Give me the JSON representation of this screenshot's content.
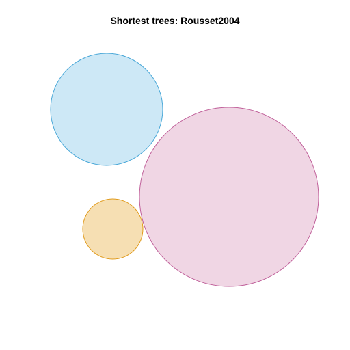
{
  "chart_data": {
    "type": "bubble",
    "title": "Shortest trees: Rousset2004",
    "xlabel": "",
    "ylabel": "",
    "axes_visible": false,
    "grid": false,
    "legend": "none",
    "series": [
      {
        "color_fill": "#cde8f6",
        "color_stroke": "#4aa8d8",
        "cx": 156,
        "cy": 160,
        "r": 82
      },
      {
        "color_fill": "#f0d6e4",
        "color_stroke": "#c0609a",
        "cx": 335,
        "cy": 288,
        "r": 131
      },
      {
        "color_fill": "#f6dfb3",
        "color_stroke": "#e09a1a",
        "cx": 165,
        "cy": 335,
        "r": 44
      }
    ],
    "units": "plot-units (no axes shown)"
  }
}
